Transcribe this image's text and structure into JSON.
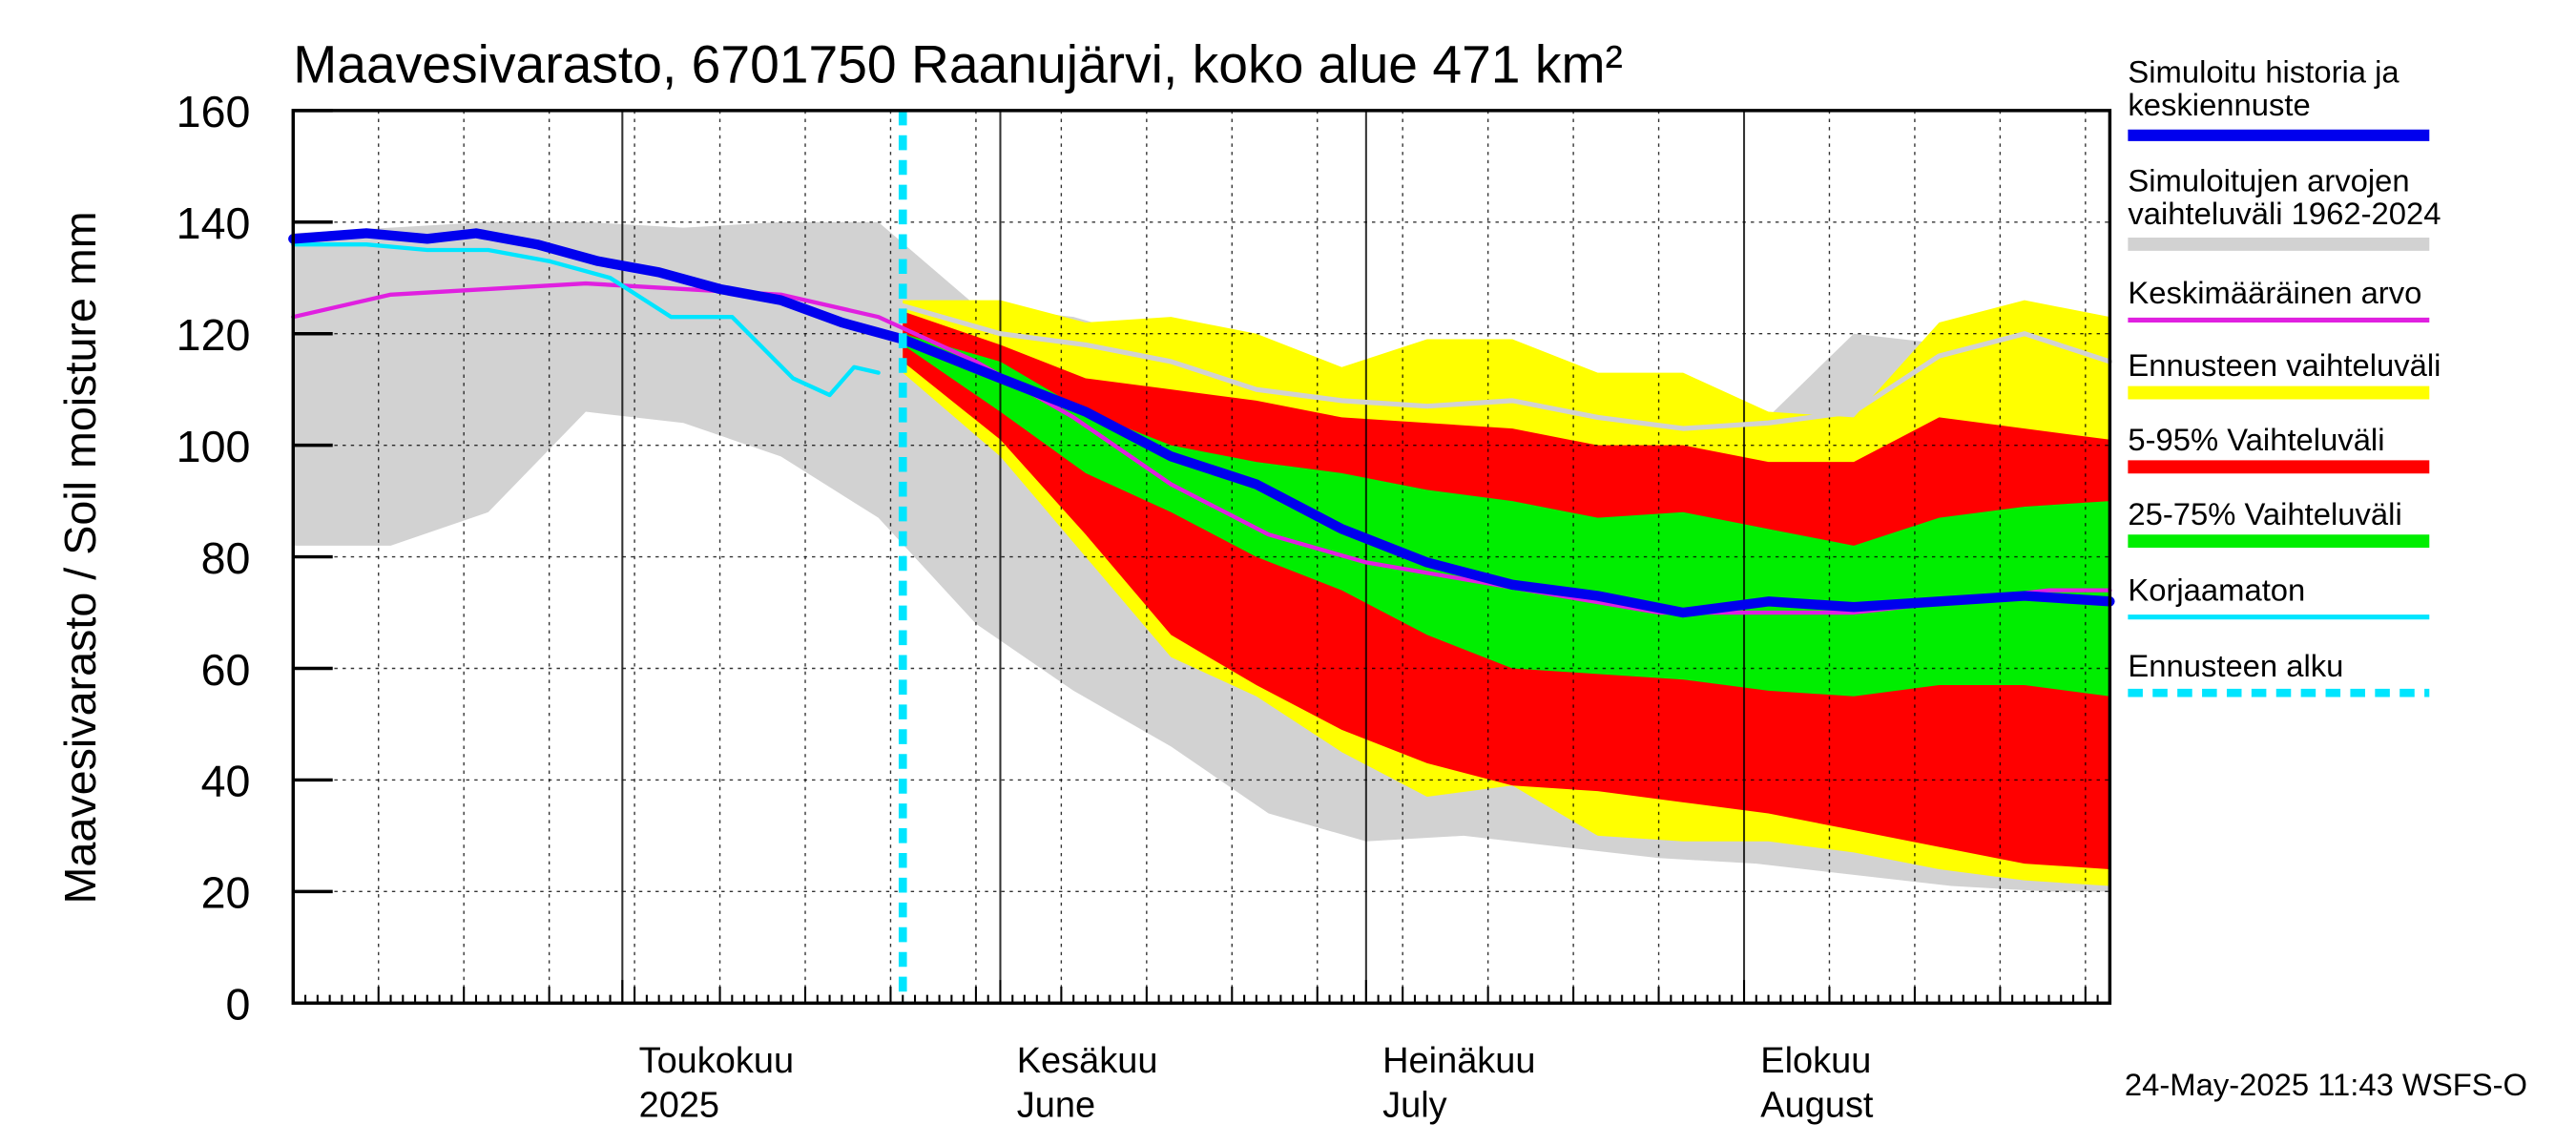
{
  "chart_data": {
    "type": "area",
    "title": "Maavesivarasto, 6701750 Raanujärvi, koko alue 471 km²",
    "ylabel": "Maavesivarasto / Soil moisture   mm",
    "ylim": [
      0,
      160
    ],
    "yticks": [
      "0",
      "20",
      "40",
      "60",
      "80",
      "100",
      "120",
      "140",
      "160"
    ],
    "xlim": [
      "2025-04-04",
      "2025-08-31"
    ],
    "x_month_labels": [
      {
        "date": "2025-05-01",
        "line1": "Toukokuu",
        "line2": "2025"
      },
      {
        "date": "2025-06-01",
        "line1": "Kesäkuu",
        "line2": "June"
      },
      {
        "date": "2025-07-01",
        "line1": "Heinäkuu",
        "line2": "July"
      },
      {
        "date": "2025-08-01",
        "line1": "Elokuu",
        "line2": "August"
      }
    ],
    "grid": true,
    "legend_position": "right",
    "forecast_start": "2025-05-24",
    "timestamp": "24-May-2025 11:43 WSFS-O",
    "colors": {
      "history": "#0000ee",
      "range": "#d2d2d2",
      "mean": "#e020e0",
      "forecast_range": "#ffff00",
      "p5_95": "#ff0000",
      "p25_75": "#00ee00",
      "uncorrected": "#00e5ff",
      "forecast_start": "#00e5ff"
    },
    "legend": [
      {
        "label": "Simuloitu historia ja keskiennuste",
        "color": "#0000ee",
        "style": "thick"
      },
      {
        "label": "Simuloitujen arvojen vaihteluväli 1962-2024",
        "color": "#d2d2d2",
        "style": "band"
      },
      {
        "label": "Keskimääräinen arvo",
        "color": "#e020e0",
        "style": "line"
      },
      {
        "label": "Ennusteen vaihteluväli",
        "color": "#ffff00",
        "style": "band"
      },
      {
        "label": "5-95% Vaihteluväli",
        "color": "#ff0000",
        "style": "band"
      },
      {
        "label": "25-75% Vaihteluväli",
        "color": "#00ee00",
        "style": "band"
      },
      {
        "label": "Korjaamaton",
        "color": "#00e5ff",
        "style": "line"
      },
      {
        "label": "Ennusteen alku",
        "color": "#00e5ff",
        "style": "dashed"
      }
    ],
    "series": {
      "hist_range": {
        "x": [
          "2025-04-04",
          "2025-04-12",
          "2025-04-20",
          "2025-04-28",
          "2025-05-06",
          "2025-05-14",
          "2025-05-22",
          "2025-05-30",
          "2025-06-07",
          "2025-06-15",
          "2025-06-23",
          "2025-07-01",
          "2025-07-09",
          "2025-07-17",
          "2025-07-25",
          "2025-08-02",
          "2025-08-10",
          "2025-08-18",
          "2025-08-26",
          "2025-08-31"
        ],
        "upper": [
          138,
          139,
          140,
          140,
          139,
          140,
          140,
          125,
          123,
          118,
          113,
          110,
          108,
          106,
          104,
          103,
          120,
          118,
          120,
          119
        ],
        "lower": [
          82,
          82,
          88,
          106,
          104,
          98,
          87,
          68,
          56,
          46,
          34,
          29,
          30,
          28,
          26,
          25,
          23,
          21,
          20,
          20
        ]
      },
      "forecast_range": {
        "x": [
          "2025-05-24",
          "2025-06-01",
          "2025-06-08",
          "2025-06-15",
          "2025-06-22",
          "2025-06-29",
          "2025-07-06",
          "2025-07-13",
          "2025-07-20",
          "2025-07-27",
          "2025-08-03",
          "2025-08-10",
          "2025-08-17",
          "2025-08-24",
          "2025-08-31"
        ],
        "upper": [
          126,
          126,
          122,
          123,
          120,
          114,
          119,
          119,
          113,
          113,
          106,
          105,
          122,
          126,
          123
        ],
        "lower": [
          113,
          98,
          80,
          62,
          55,
          45,
          37,
          39,
          30,
          29,
          29,
          27,
          24,
          22,
          21
        ]
      },
      "p5_95": {
        "x": [
          "2025-05-24",
          "2025-06-01",
          "2025-06-08",
          "2025-06-15",
          "2025-06-22",
          "2025-06-29",
          "2025-07-06",
          "2025-07-13",
          "2025-07-20",
          "2025-07-27",
          "2025-08-03",
          "2025-08-10",
          "2025-08-17",
          "2025-08-24",
          "2025-08-31"
        ],
        "upper": [
          124,
          118,
          112,
          110,
          108,
          105,
          104,
          103,
          100,
          100,
          97,
          97,
          105,
          103,
          101
        ],
        "lower": [
          115,
          101,
          84,
          66,
          57,
          49,
          43,
          39,
          38,
          36,
          34,
          31,
          28,
          25,
          24
        ]
      },
      "p25_75": {
        "x": [
          "2025-05-24",
          "2025-06-01",
          "2025-06-08",
          "2025-06-15",
          "2025-06-22",
          "2025-06-29",
          "2025-07-06",
          "2025-07-13",
          "2025-07-20",
          "2025-07-27",
          "2025-08-03",
          "2025-08-10",
          "2025-08-17",
          "2025-08-24",
          "2025-08-31"
        ],
        "upper": [
          120,
          115,
          106,
          100,
          97,
          95,
          92,
          90,
          87,
          88,
          85,
          82,
          87,
          89,
          90
        ],
        "lower": [
          118,
          106,
          95,
          88,
          80,
          74,
          66,
          60,
          59,
          58,
          56,
          55,
          57,
          57,
          55
        ]
      },
      "history": {
        "name": "Simuloitu historia ja keskiennuste",
        "x": [
          "2025-04-04",
          "2025-04-10",
          "2025-04-15",
          "2025-04-19",
          "2025-04-24",
          "2025-04-29",
          "2025-05-04",
          "2025-05-09",
          "2025-05-14",
          "2025-05-19",
          "2025-05-24",
          "2025-06-01",
          "2025-06-08",
          "2025-06-15",
          "2025-06-22",
          "2025-06-29",
          "2025-07-06",
          "2025-07-13",
          "2025-07-20",
          "2025-07-27",
          "2025-08-03",
          "2025-08-10",
          "2025-08-17",
          "2025-08-24",
          "2025-08-31"
        ],
        "y": [
          137,
          138,
          137,
          138,
          136,
          133,
          131,
          128,
          126,
          122,
          119,
          112,
          106,
          98,
          93,
          85,
          79,
          75,
          73,
          70,
          72,
          71,
          72,
          73,
          72
        ]
      },
      "mean": {
        "name": "Keskimääräinen arvo",
        "x": [
          "2025-04-04",
          "2025-04-12",
          "2025-04-20",
          "2025-04-28",
          "2025-05-06",
          "2025-05-14",
          "2025-05-22",
          "2025-05-30",
          "2025-06-07",
          "2025-06-15",
          "2025-06-23",
          "2025-07-01",
          "2025-07-09",
          "2025-07-17",
          "2025-07-25",
          "2025-08-02",
          "2025-08-10",
          "2025-08-18",
          "2025-08-26",
          "2025-08-31"
        ],
        "y": [
          123,
          127,
          128,
          129,
          128,
          127,
          123,
          115,
          105,
          93,
          84,
          79,
          76,
          73,
          70,
          70,
          70,
          72,
          74,
          74
        ]
      },
      "uncorrected": {
        "name": "Korjaamaton",
        "x": [
          "2025-04-04",
          "2025-04-10",
          "2025-04-15",
          "2025-04-20",
          "2025-04-25",
          "2025-04-30",
          "2025-05-05",
          "2025-05-10",
          "2025-05-15",
          "2025-05-18",
          "2025-05-20",
          "2025-05-22"
        ],
        "y": [
          136,
          136,
          135,
          135,
          133,
          130,
          123,
          123,
          112,
          109,
          114,
          113
        ]
      },
      "history_range_median": {
        "x": [
          "2025-05-24",
          "2025-06-01",
          "2025-06-08",
          "2025-06-15",
          "2025-06-22",
          "2025-06-29",
          "2025-07-06",
          "2025-07-13",
          "2025-07-20",
          "2025-07-27",
          "2025-08-03",
          "2025-08-10",
          "2025-08-17",
          "2025-08-24",
          "2025-08-31"
        ],
        "y": [
          125,
          120,
          118,
          115,
          110,
          108,
          107,
          108,
          105,
          103,
          104,
          106,
          116,
          120,
          115
        ]
      }
    }
  }
}
